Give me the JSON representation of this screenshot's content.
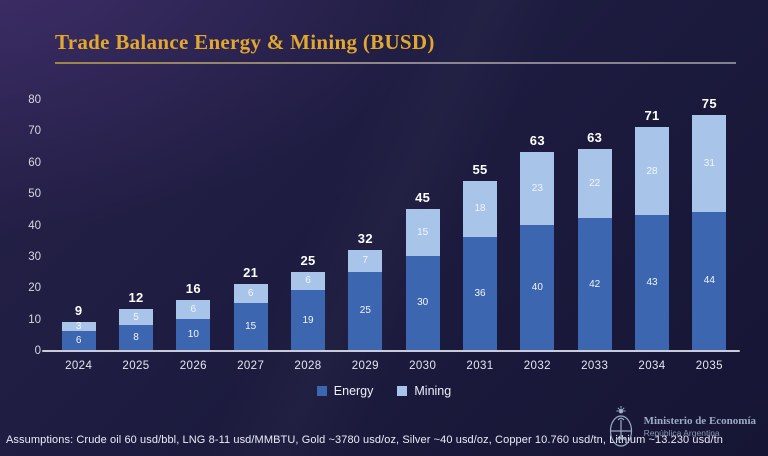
{
  "header": {
    "title": "Trade Balance Energy & Mining (BUSD)"
  },
  "chart_data": {
    "type": "bar",
    "stacked": true,
    "title": "Trade Balance Energy & Mining (BUSD)",
    "categories": [
      "2024",
      "2025",
      "2026",
      "2027",
      "2028",
      "2029",
      "2030",
      "2031",
      "2032",
      "2033",
      "2034",
      "2035"
    ],
    "series": [
      {
        "name": "Energy",
        "color": "#3c66b0",
        "values": [
          6,
          8,
          10,
          15,
          19,
          25,
          30,
          36,
          40,
          42,
          43,
          44
        ]
      },
      {
        "name": "Mining",
        "color": "#a9c4e9",
        "values": [
          3,
          5,
          6,
          6,
          6,
          7,
          15,
          18,
          23,
          22,
          28,
          31
        ]
      }
    ],
    "total_labels": [
      9,
      12,
      16,
      21,
      25,
      32,
      45,
      55,
      63,
      63,
      71,
      75
    ],
    "xlabel": "",
    "ylabel": "",
    "ylim": [
      0,
      80
    ],
    "yticks": [
      0,
      10,
      20,
      30,
      40,
      50,
      60,
      70,
      80
    ],
    "grid": false,
    "legend_position": "bottom"
  },
  "footer": {
    "assumptions": "Assumptions: Crude oil 60 usd/bbl, LNG 8-11 usd/MMBTU, Gold ~3780 usd/oz, Silver ~40 usd/oz, Copper 10.760 usd/tn, Lithium ~13.230 usd/tn",
    "logo": {
      "line1": "Ministerio de Economía",
      "line2": "República Argentina"
    }
  },
  "colors": {
    "background": "#1d1c40",
    "title_gold": "#e3a72d",
    "energy": "#3c66b0",
    "mining": "#a9c4e9",
    "axis_text": "#d7d7e3",
    "axis_line": "#c9ccd8"
  }
}
